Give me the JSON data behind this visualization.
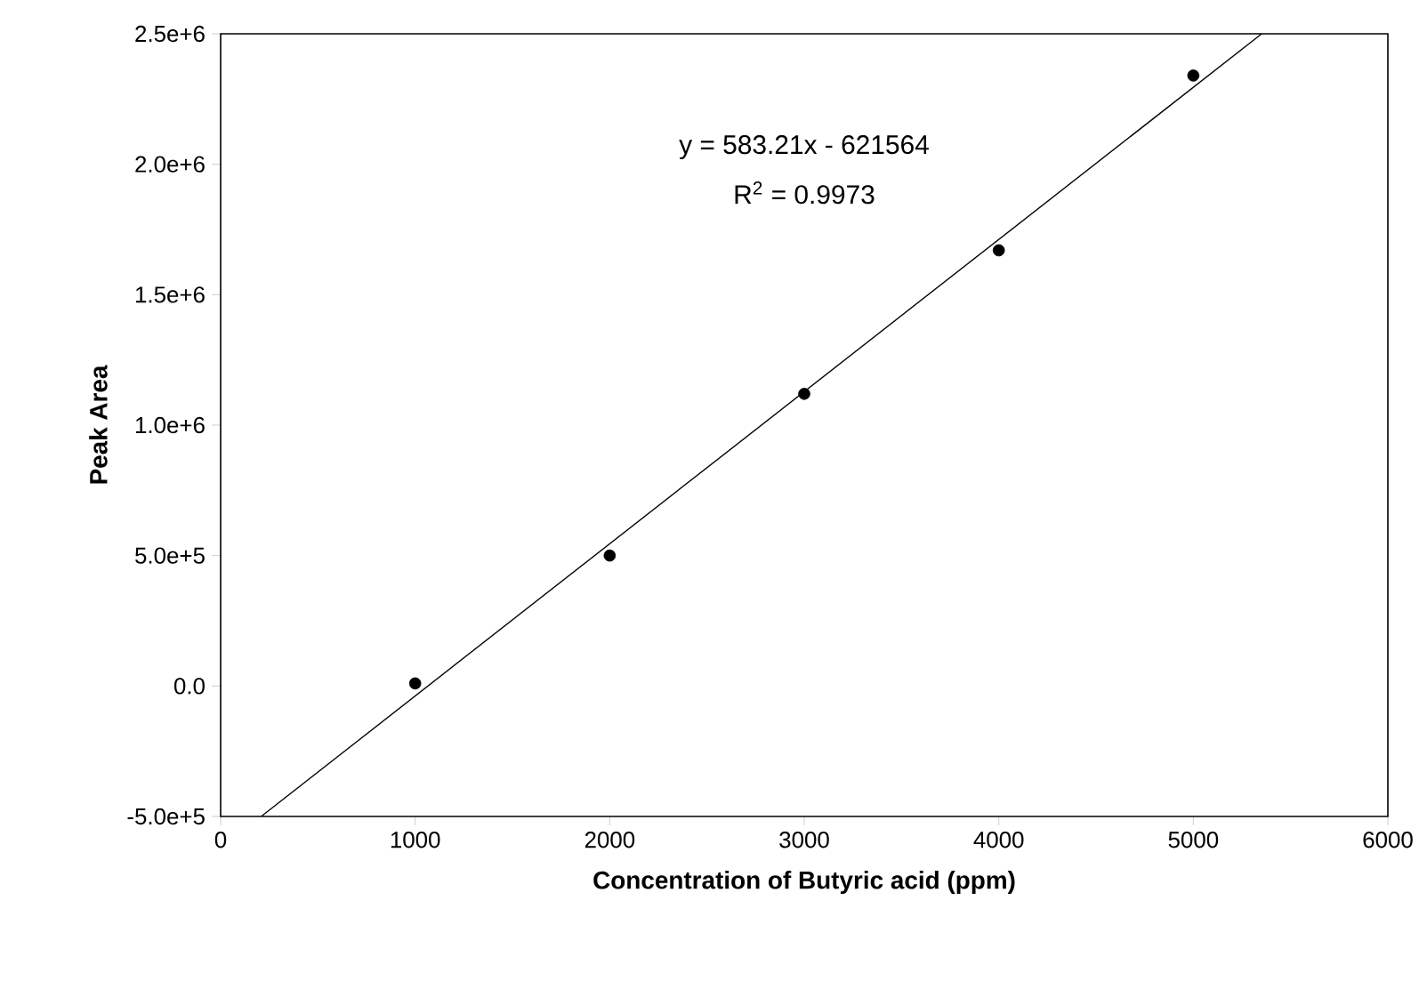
{
  "chart_data": {
    "type": "scatter",
    "xlabel": "Concentration of Butyric acid (ppm)",
    "ylabel": "Peak Area",
    "xlim": [
      0,
      6000
    ],
    "xticks": [
      0,
      1000,
      2000,
      3000,
      4000,
      5000,
      6000
    ],
    "ylim": [
      -500000,
      2500000
    ],
    "yticks": [
      {
        "value": -500000,
        "label": "-5.0e+5"
      },
      {
        "value": 0,
        "label": "0.0"
      },
      {
        "value": 500000,
        "label": "5.0e+5"
      },
      {
        "value": 1000000,
        "label": "1.0e+6"
      },
      {
        "value": 1500000,
        "label": "1.5e+6"
      },
      {
        "value": 2000000,
        "label": "2.0e+6"
      },
      {
        "value": 2500000,
        "label": "2.5e+6"
      }
    ],
    "series": [
      {
        "color": "#000000",
        "marker": "circle",
        "x": [
          1000,
          2000,
          3000,
          4000,
          5000
        ],
        "values": [
          10000,
          500000,
          1120000,
          1670000,
          2340000
        ]
      },
      {
        "type": "line",
        "color": "#000000",
        "line_style": "solid",
        "marker": "none",
        "x": [
          210,
          5350
        ],
        "values": [
          -499000,
          2499000
        ]
      }
    ],
    "annotations": [
      "y = 583.21x - 621564",
      "R$^{2}$ = 0.9973"
    ],
    "grid": false
  }
}
